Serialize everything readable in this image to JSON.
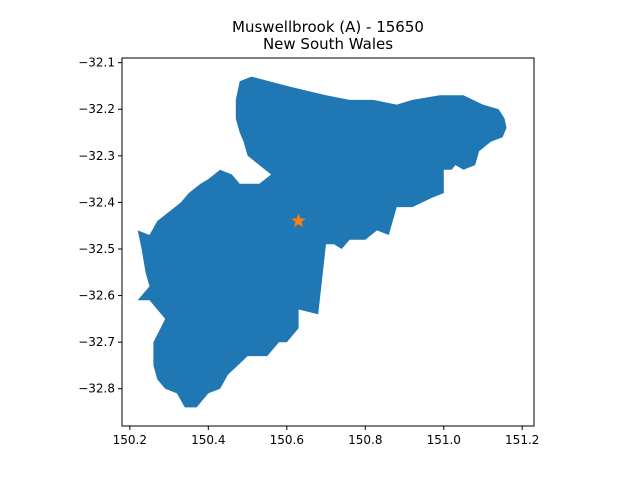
{
  "title_line1": "Muswellbrook (A) - 15650",
  "title_line2": "New South Wales",
  "colors": {
    "region_fill": "#1f77b4",
    "marker": "#ff7f0e",
    "axes": "#000000",
    "background": "#ffffff"
  },
  "marker_icon": "star-icon",
  "chart_data": {
    "type": "map",
    "title": "Muswellbrook (A) - 15650\nNew South Wales",
    "xlabel": "",
    "ylabel": "",
    "xlim": [
      150.18,
      151.23
    ],
    "ylim": [
      -32.88,
      -32.09
    ],
    "grid": false,
    "x_ticks": [
      "150.2",
      "150.4",
      "150.6",
      "150.8",
      "151.0",
      "151.2"
    ],
    "y_ticks": [
      "−32.1",
      "−32.2",
      "−32.3",
      "−32.4",
      "−32.5",
      "−32.6",
      "−32.7",
      "−32.8"
    ],
    "x_tick_values": [
      150.2,
      150.4,
      150.6,
      150.8,
      151.0,
      151.2
    ],
    "y_tick_values": [
      -32.1,
      -32.2,
      -32.3,
      -32.4,
      -32.5,
      -32.6,
      -32.7,
      -32.8
    ],
    "centroid": {
      "lon": 150.63,
      "lat": -32.44
    },
    "region_outline": [
      [
        150.51,
        -32.13
      ],
      [
        150.6,
        -32.15
      ],
      [
        150.65,
        -32.16
      ],
      [
        150.7,
        -32.17
      ],
      [
        150.76,
        -32.18
      ],
      [
        150.82,
        -32.18
      ],
      [
        150.88,
        -32.19
      ],
      [
        150.92,
        -32.18
      ],
      [
        150.99,
        -32.17
      ],
      [
        151.05,
        -32.17
      ],
      [
        151.1,
        -32.19
      ],
      [
        151.14,
        -32.2
      ],
      [
        151.155,
        -32.22
      ],
      [
        151.16,
        -32.24
      ],
      [
        151.15,
        -32.26
      ],
      [
        151.12,
        -32.27
      ],
      [
        151.09,
        -32.29
      ],
      [
        151.08,
        -32.32
      ],
      [
        151.05,
        -32.33
      ],
      [
        151.03,
        -32.32
      ],
      [
        151.02,
        -32.33
      ],
      [
        151.0,
        -32.33
      ],
      [
        151.0,
        -32.38
      ],
      [
        150.97,
        -32.39
      ],
      [
        150.92,
        -32.41
      ],
      [
        150.88,
        -32.41
      ],
      [
        150.86,
        -32.47
      ],
      [
        150.83,
        -32.46
      ],
      [
        150.8,
        -32.48
      ],
      [
        150.76,
        -32.48
      ],
      [
        150.74,
        -32.5
      ],
      [
        150.72,
        -32.49
      ],
      [
        150.7,
        -32.49
      ],
      [
        150.68,
        -32.64
      ],
      [
        150.63,
        -32.63
      ],
      [
        150.63,
        -32.67
      ],
      [
        150.6,
        -32.7
      ],
      [
        150.58,
        -32.7
      ],
      [
        150.55,
        -32.73
      ],
      [
        150.5,
        -32.73
      ],
      [
        150.45,
        -32.77
      ],
      [
        150.43,
        -32.8
      ],
      [
        150.4,
        -32.81
      ],
      [
        150.37,
        -32.84
      ],
      [
        150.34,
        -32.84
      ],
      [
        150.32,
        -32.81
      ],
      [
        150.29,
        -32.8
      ],
      [
        150.27,
        -32.78
      ],
      [
        150.26,
        -32.75
      ],
      [
        150.26,
        -32.7
      ],
      [
        150.29,
        -32.65
      ],
      [
        150.27,
        -32.63
      ],
      [
        150.26,
        -32.62
      ],
      [
        150.25,
        -32.61
      ],
      [
        150.22,
        -32.61
      ],
      [
        150.25,
        -32.58
      ],
      [
        150.24,
        -32.55
      ],
      [
        150.23,
        -32.5
      ],
      [
        150.22,
        -32.46
      ],
      [
        150.25,
        -32.47
      ],
      [
        150.27,
        -32.44
      ],
      [
        150.3,
        -32.42
      ],
      [
        150.33,
        -32.4
      ],
      [
        150.35,
        -32.38
      ],
      [
        150.38,
        -32.36
      ],
      [
        150.4,
        -32.35
      ],
      [
        150.43,
        -32.33
      ],
      [
        150.46,
        -32.34
      ],
      [
        150.48,
        -32.36
      ],
      [
        150.5,
        -32.36
      ],
      [
        150.53,
        -32.36
      ],
      [
        150.56,
        -32.34
      ],
      [
        150.53,
        -32.32
      ],
      [
        150.5,
        -32.3
      ],
      [
        150.49,
        -32.27
      ],
      [
        150.48,
        -32.25
      ],
      [
        150.47,
        -32.22
      ],
      [
        150.47,
        -32.18
      ],
      [
        150.48,
        -32.14
      ],
      [
        150.51,
        -32.13
      ]
    ]
  }
}
